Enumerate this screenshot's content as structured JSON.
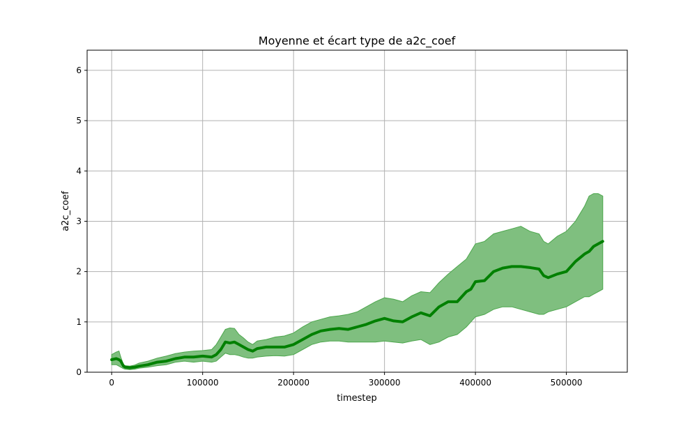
{
  "chart_data": {
    "type": "area",
    "title": "Moyenne et écart type de a2c_coef",
    "xlabel": "timestep",
    "ylabel": "a2c_coef",
    "xlim": [
      -27000,
      567000
    ],
    "ylim": [
      0,
      6.4
    ],
    "xticks": [
      0,
      100000,
      200000,
      300000,
      400000,
      500000
    ],
    "xtick_labels": [
      "0",
      "100000",
      "200000",
      "300000",
      "400000",
      "500000"
    ],
    "yticks": [
      0,
      1,
      2,
      3,
      4,
      5,
      6
    ],
    "ytick_labels": [
      "0",
      "1",
      "2",
      "3",
      "4",
      "5",
      "6"
    ],
    "grid": true,
    "colors": {
      "line": "#008000",
      "band": "#7fbf7f",
      "band_edge": "#4ca64c",
      "grid": "#b0b0b0"
    },
    "series": [
      {
        "x": [
          0,
          5000,
          8000,
          10000,
          13000,
          15000,
          20000,
          25000,
          30000,
          40000,
          50000,
          60000,
          70000,
          80000,
          90000,
          100000,
          110000,
          115000,
          120000,
          125000,
          130000,
          135000,
          140000,
          145000,
          150000,
          155000,
          160000,
          170000,
          180000,
          190000,
          200000,
          210000,
          220000,
          230000,
          240000,
          250000,
          260000,
          270000,
          280000,
          290000,
          300000,
          310000,
          320000,
          330000,
          340000,
          350000,
          360000,
          370000,
          380000,
          390000,
          395000,
          400000,
          410000,
          420000,
          430000,
          440000,
          450000,
          460000,
          470000,
          475000,
          480000,
          490000,
          500000,
          510000,
          520000,
          525000,
          530000,
          535000,
          540000
        ],
        "mean": [
          0.25,
          0.27,
          0.25,
          0.22,
          0.12,
          0.1,
          0.09,
          0.1,
          0.12,
          0.15,
          0.2,
          0.22,
          0.27,
          0.3,
          0.3,
          0.32,
          0.3,
          0.35,
          0.45,
          0.6,
          0.58,
          0.6,
          0.55,
          0.5,
          0.45,
          0.42,
          0.47,
          0.5,
          0.5,
          0.5,
          0.55,
          0.65,
          0.75,
          0.82,
          0.85,
          0.87,
          0.85,
          0.9,
          0.95,
          1.02,
          1.07,
          1.02,
          1.0,
          1.1,
          1.18,
          1.12,
          1.3,
          1.4,
          1.4,
          1.6,
          1.65,
          1.8,
          1.82,
          2.0,
          2.07,
          2.1,
          2.1,
          2.08,
          2.05,
          1.92,
          1.88,
          1.95,
          2.0,
          2.2,
          2.35,
          2.4,
          2.5,
          2.55,
          2.6
        ],
        "upper": [
          0.35,
          0.4,
          0.42,
          0.3,
          0.15,
          0.13,
          0.12,
          0.14,
          0.18,
          0.22,
          0.28,
          0.32,
          0.37,
          0.4,
          0.42,
          0.43,
          0.45,
          0.55,
          0.7,
          0.85,
          0.88,
          0.87,
          0.75,
          0.68,
          0.6,
          0.55,
          0.62,
          0.65,
          0.7,
          0.72,
          0.78,
          0.9,
          1.0,
          1.05,
          1.1,
          1.12,
          1.15,
          1.2,
          1.3,
          1.4,
          1.48,
          1.45,
          1.4,
          1.52,
          1.6,
          1.58,
          1.78,
          1.95,
          2.1,
          2.25,
          2.4,
          2.55,
          2.6,
          2.75,
          2.8,
          2.85,
          2.9,
          2.8,
          2.75,
          2.6,
          2.55,
          2.7,
          2.8,
          3.0,
          3.3,
          3.5,
          3.55,
          3.55,
          3.5
        ],
        "lower": [
          0.15,
          0.15,
          0.12,
          0.1,
          0.07,
          0.06,
          0.05,
          0.06,
          0.08,
          0.1,
          0.13,
          0.15,
          0.2,
          0.22,
          0.2,
          0.22,
          0.2,
          0.22,
          0.3,
          0.38,
          0.35,
          0.35,
          0.33,
          0.3,
          0.28,
          0.28,
          0.3,
          0.32,
          0.33,
          0.32,
          0.35,
          0.45,
          0.55,
          0.6,
          0.62,
          0.62,
          0.6,
          0.6,
          0.6,
          0.6,
          0.62,
          0.6,
          0.58,
          0.62,
          0.65,
          0.55,
          0.6,
          0.7,
          0.75,
          0.9,
          1.0,
          1.1,
          1.15,
          1.25,
          1.3,
          1.3,
          1.25,
          1.2,
          1.15,
          1.15,
          1.2,
          1.25,
          1.3,
          1.4,
          1.5,
          1.5,
          1.55,
          1.6,
          1.65
        ]
      }
    ]
  }
}
